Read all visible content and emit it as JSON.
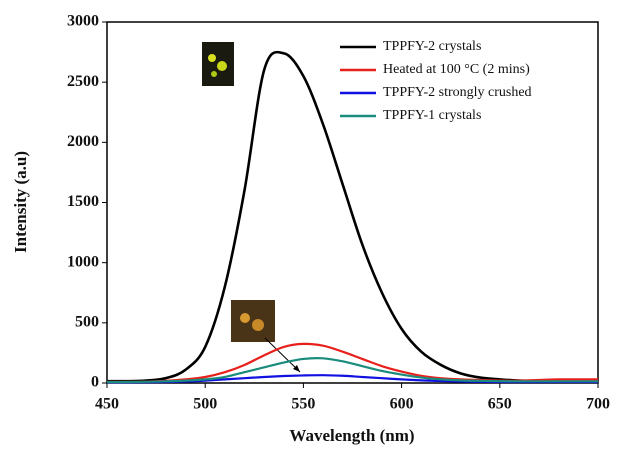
{
  "chart_data": {
    "type": "line",
    "x_label": "Wavelength (nm)",
    "y_label": "Intensity (a.u)",
    "x": [
      450,
      460,
      470,
      480,
      490,
      500,
      510,
      520,
      530,
      540,
      550,
      560,
      570,
      580,
      590,
      600,
      610,
      620,
      630,
      640,
      650,
      660,
      670,
      680,
      690,
      700
    ],
    "series": [
      {
        "name": "TPPFY-2 crystals",
        "color": "#000000",
        "values": [
          15,
          15,
          20,
          40,
          110,
          300,
          800,
          1600,
          2600,
          2740,
          2550,
          2150,
          1650,
          1150,
          750,
          450,
          260,
          150,
          80,
          45,
          30,
          20,
          15,
          15,
          15,
          15
        ]
      },
      {
        "name": "Heated at 100 °C (2 mins)",
        "color": "#e8201c",
        "values": [
          10,
          10,
          12,
          18,
          30,
          50,
          90,
          150,
          230,
          300,
          325,
          310,
          260,
          200,
          140,
          95,
          60,
          40,
          30,
          25,
          20,
          20,
          25,
          30,
          30,
          30
        ]
      },
      {
        "name": "TPPFY-2 strongly crushed",
        "color": "#1010e0",
        "values": [
          5,
          5,
          6,
          8,
          12,
          20,
          30,
          40,
          50,
          58,
          63,
          65,
          60,
          50,
          40,
          30,
          22,
          16,
          12,
          10,
          8,
          8,
          8,
          8,
          8,
          8
        ]
      },
      {
        "name": "TPPFY-1 crystals",
        "color": "#1a8c7c",
        "values": [
          8,
          8,
          10,
          14,
          20,
          30,
          50,
          90,
          130,
          170,
          200,
          205,
          180,
          140,
          100,
          70,
          45,
          30,
          22,
          18,
          15,
          14,
          14,
          14,
          14,
          14
        ]
      }
    ],
    "xlim": [
      450,
      700
    ],
    "xticks": [
      450,
      500,
      550,
      600,
      650,
      700
    ],
    "ylim": [
      0,
      3000
    ],
    "yticks": [
      0,
      500,
      1000,
      1500,
      2000,
      2500,
      3000
    ],
    "legend": "top-right"
  }
}
